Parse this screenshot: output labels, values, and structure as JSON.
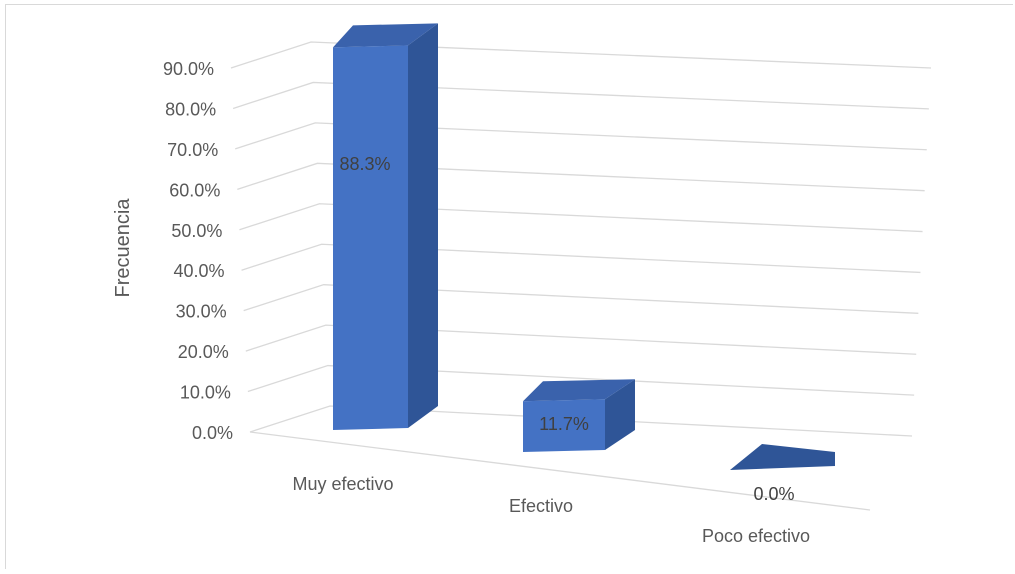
{
  "chart_data": {
    "type": "bar",
    "categories": [
      "Muy efectivo",
      "Efectivo",
      "Poco efectivo"
    ],
    "values": [
      88.3,
      11.7,
      0.0
    ],
    "data_labels": [
      "88.3%",
      "11.7%",
      "0.0%"
    ],
    "ylabel": "Frecuencia",
    "ylim": [
      0,
      90
    ],
    "yticks": [
      "0.0%",
      "10.0%",
      "20.0%",
      "30.0%",
      "40.0%",
      "50.0%",
      "60.0%",
      "70.0%",
      "80.0%",
      "90.0%"
    ],
    "grid": true,
    "legend": "none",
    "colors": {
      "front": "#4472c4",
      "side": "#2f5597",
      "top": "#3a62ac",
      "grid": "#d9d9d9",
      "text": "#595959"
    }
  }
}
